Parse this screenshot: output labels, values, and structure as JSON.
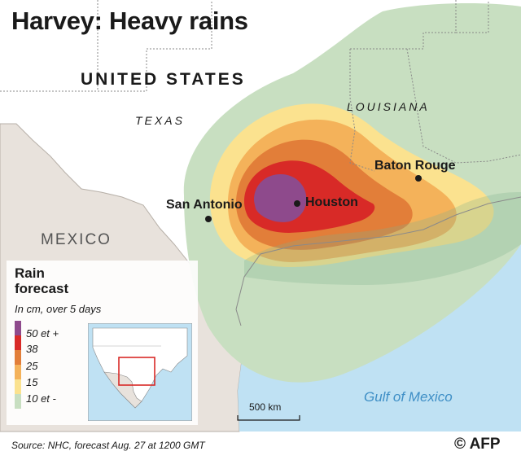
{
  "title": "Harvey: Heavy rains",
  "labels": {
    "country_us": "UNITED STATES",
    "country_mexico": "MEXICO",
    "state_texas": "TEXAS",
    "state_louisiana": "LOUISIANA",
    "water_gulf": "Gulf of Mexico"
  },
  "cities": {
    "san_antonio": "San Antonio",
    "houston": "Houston",
    "baton_rouge": "Baton Rouge"
  },
  "scale_bar": {
    "label": "500 km"
  },
  "legend": {
    "title": "Rain forecast",
    "subtitle": "In cm, over 5 days",
    "items": [
      {
        "label": "50 et +",
        "color": "#8e4a8c"
      },
      {
        "label": "38",
        "color": "#d82a27"
      },
      {
        "label": "25",
        "color": "#e27e39"
      },
      {
        "label": "15",
        "color": "#f4b25a"
      },
      {
        "label": "10 et -",
        "color": "#fbe28f"
      },
      {
        "label": "",
        "color": "#c8dfc1"
      }
    ]
  },
  "source": "Source: NHC, forecast Aug. 27 at 1200 GMT",
  "credit": "© AFP",
  "colors": {
    "land_us": "#ffffff",
    "land_mexico": "#e8e2dc",
    "sea": "#bfe1f3",
    "rain_lightest": "#c8dfc1",
    "accent_water_label": "#3f8fc6"
  }
}
